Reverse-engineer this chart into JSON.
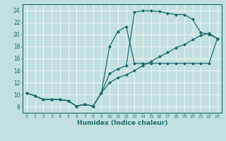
{
  "xlabel": "Humidex (Indice chaleur)",
  "bg_color": "#c2e0e0",
  "line_color": "#1a6b6b",
  "marker": "D",
  "markersize": 2.0,
  "linewidth": 0.9,
  "xlim": [
    -0.5,
    23.5
  ],
  "ylim": [
    7.0,
    25.0
  ],
  "xticks": [
    0,
    1,
    2,
    3,
    4,
    5,
    6,
    7,
    8,
    9,
    10,
    11,
    12,
    13,
    14,
    15,
    16,
    17,
    18,
    19,
    20,
    21,
    22,
    23
  ],
  "yticks": [
    8,
    10,
    12,
    14,
    16,
    18,
    20,
    22,
    24
  ],
  "series1_x": [
    0,
    1,
    2,
    3,
    4,
    5,
    6,
    7,
    8,
    9,
    10,
    11,
    12,
    13,
    14,
    15,
    16,
    17,
    18,
    19,
    20,
    21,
    22,
    23
  ],
  "series1_y": [
    10.3,
    9.8,
    9.2,
    9.2,
    9.2,
    9.0,
    8.1,
    8.4,
    8.1,
    10.3,
    18.0,
    20.5,
    21.3,
    15.2,
    15.2,
    15.2,
    15.2,
    15.2,
    15.2,
    15.2,
    15.2,
    15.2,
    15.2,
    19.3
  ],
  "series2_x": [
    0,
    1,
    2,
    3,
    4,
    5,
    6,
    7,
    8,
    9,
    10,
    11,
    12,
    13,
    14,
    15,
    16,
    17,
    18,
    19,
    20,
    21,
    22,
    23
  ],
  "series2_y": [
    10.3,
    9.8,
    9.2,
    9.2,
    9.2,
    9.0,
    8.1,
    8.4,
    8.1,
    10.3,
    13.5,
    14.3,
    14.8,
    23.7,
    23.9,
    23.9,
    23.8,
    23.5,
    23.3,
    23.3,
    22.5,
    20.3,
    20.0,
    19.3
  ],
  "series3_x": [
    0,
    1,
    2,
    3,
    4,
    5,
    6,
    7,
    8,
    9,
    10,
    11,
    12,
    13,
    14,
    15,
    16,
    17,
    18,
    19,
    20,
    21,
    22,
    23
  ],
  "series3_y": [
    10.3,
    9.8,
    9.2,
    9.2,
    9.2,
    9.0,
    8.1,
    8.4,
    8.1,
    10.3,
    12.0,
    12.8,
    13.3,
    14.0,
    14.8,
    15.5,
    16.3,
    17.0,
    17.8,
    18.3,
    19.1,
    19.8,
    20.2,
    19.3
  ]
}
